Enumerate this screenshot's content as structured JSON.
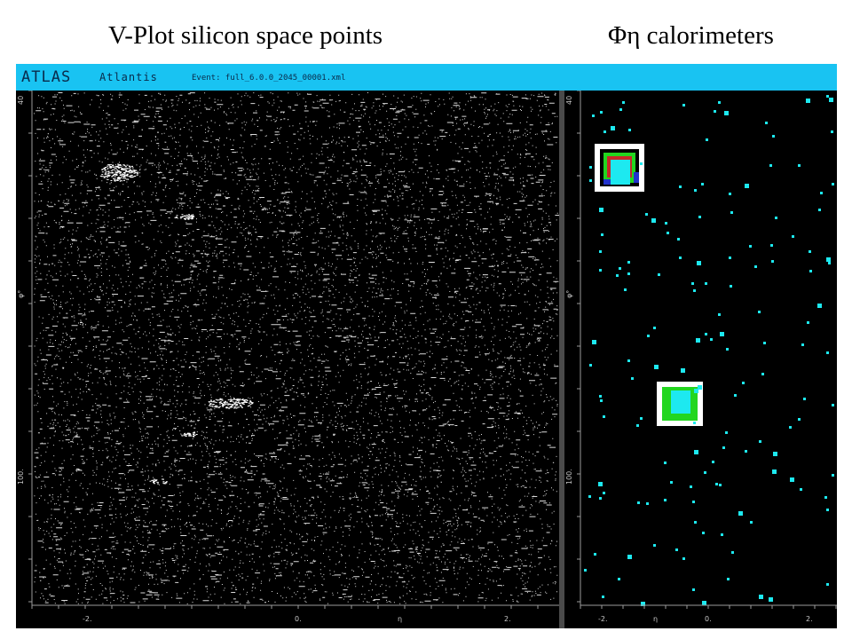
{
  "slide": {
    "title_left": "V-Plot silicon space points",
    "title_right": "Φη calorimeters"
  },
  "app": {
    "logo": "ATLAS",
    "name": "Atlantis",
    "event": "Event: full_6.0.0_2045_00001.xml"
  },
  "left_panel": {
    "y_axis_label": "φ°",
    "y_ticks": [
      "40",
      "100."
    ],
    "x_axis_label": "η",
    "x_ticks": [
      "-2.",
      "0.",
      "2."
    ],
    "point_color": "#ffffff"
  },
  "right_panel": {
    "y_axis_label": "φ°",
    "y_ticks": [
      "40",
      "100."
    ],
    "x_axis_label": "η",
    "x_ticks": [
      "-2.",
      "0.",
      "2."
    ],
    "cell_color": "#1de9f0",
    "cluster_colors": [
      "#ffffff",
      "#22d61f",
      "#1de9f0",
      "#2233cc",
      "#c62828"
    ]
  }
}
